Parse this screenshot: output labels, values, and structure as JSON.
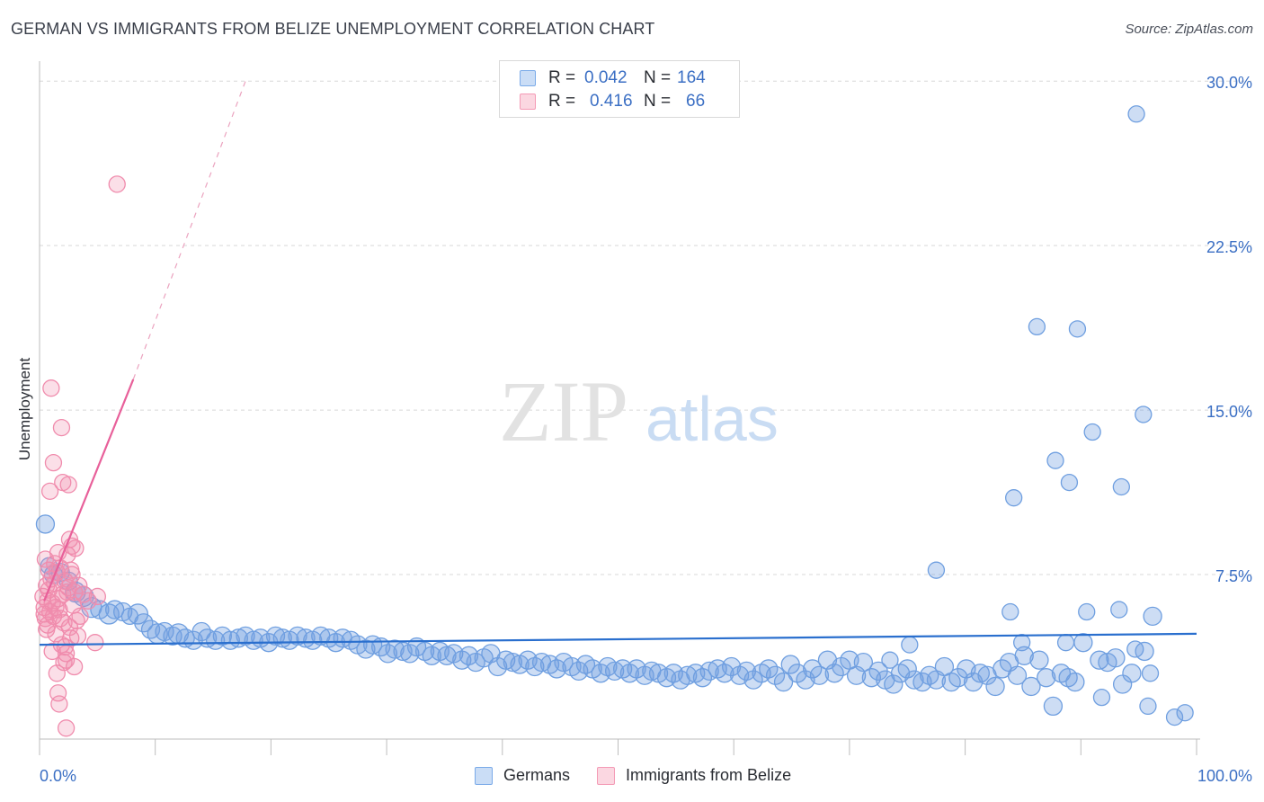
{
  "title": "GERMAN VS IMMIGRANTS FROM BELIZE UNEMPLOYMENT CORRELATION CHART",
  "source": "Source: ZipAtlas.com",
  "watermark": {
    "zip": "ZIP",
    "atlas": "atlas"
  },
  "legend": {
    "rows": [
      {
        "r_label": "R =",
        "r_value": "0.042",
        "n_label": "N =",
        "n_value": "164",
        "color": "#7aaae8"
      },
      {
        "r_label": "R =",
        "r_value": "0.416",
        "n_label": "N =",
        "n_value": "66",
        "color": "#f49ab5"
      }
    ]
  },
  "bottom_legend": [
    {
      "label": "Germans",
      "color": "#7aaae8"
    },
    {
      "label": "Immigrants from Belize",
      "color": "#f49ab5"
    }
  ],
  "chart_data": {
    "type": "scatter",
    "title": "GERMAN VS IMMIGRANTS FROM BELIZE UNEMPLOYMENT CORRELATION CHART",
    "xlabel": "",
    "ylabel": "Unemployment",
    "xlim": [
      0,
      100
    ],
    "ylim": [
      0,
      30.5
    ],
    "x_tick_labels": [
      "0.0%",
      "100.0%"
    ],
    "y_ticks": [
      {
        "value": 30.0,
        "label": "30.0%"
      },
      {
        "value": 22.5,
        "label": "22.5%"
      },
      {
        "value": 15.0,
        "label": "15.0%"
      },
      {
        "value": 7.5,
        "label": "7.5%"
      }
    ],
    "grid": true,
    "series": [
      {
        "name": "Germans",
        "color": "#6f9fe0",
        "trend": {
          "x": [
            0,
            100
          ],
          "y": [
            4.3,
            4.8
          ]
        },
        "points": [
          [
            0.5,
            9.8,
            10
          ],
          [
            0.8,
            7.9,
            9
          ],
          [
            1.2,
            7.5,
            10
          ],
          [
            1.8,
            7.6,
            10
          ],
          [
            2.5,
            7.2,
            10
          ],
          [
            3.1,
            6.7,
            11
          ],
          [
            3.8,
            6.5,
            11
          ],
          [
            4.5,
            6.0,
            11
          ],
          [
            5.2,
            5.9,
            10
          ],
          [
            6.0,
            5.7,
            11
          ],
          [
            6.5,
            5.9,
            10
          ],
          [
            7.2,
            5.8,
            10
          ],
          [
            7.8,
            5.6,
            9
          ],
          [
            8.5,
            5.7,
            11
          ],
          [
            9.0,
            5.3,
            10
          ],
          [
            9.6,
            5.0,
            10
          ],
          [
            10.2,
            4.8,
            11
          ],
          [
            10.8,
            4.9,
            10
          ],
          [
            11.5,
            4.7,
            10
          ],
          [
            12.0,
            4.8,
            11
          ],
          [
            12.6,
            4.6,
            10
          ],
          [
            13.3,
            4.5,
            10
          ],
          [
            14.0,
            4.9,
            10
          ],
          [
            14.5,
            4.6,
            10
          ],
          [
            15.2,
            4.5,
            10
          ],
          [
            15.8,
            4.7,
            10
          ],
          [
            16.5,
            4.5,
            10
          ],
          [
            17.2,
            4.6,
            10
          ],
          [
            17.8,
            4.7,
            10
          ],
          [
            18.5,
            4.5,
            10
          ],
          [
            19.1,
            4.6,
            10
          ],
          [
            19.8,
            4.4,
            10
          ],
          [
            20.4,
            4.7,
            10
          ],
          [
            21.0,
            4.6,
            10
          ],
          [
            21.6,
            4.5,
            10
          ],
          [
            22.3,
            4.7,
            10
          ],
          [
            23.0,
            4.6,
            10
          ],
          [
            23.6,
            4.5,
            10
          ],
          [
            24.3,
            4.7,
            10
          ],
          [
            25.0,
            4.6,
            10
          ],
          [
            25.6,
            4.4,
            10
          ],
          [
            26.2,
            4.6,
            10
          ],
          [
            26.9,
            4.5,
            10
          ],
          [
            27.5,
            4.3,
            10
          ],
          [
            28.2,
            4.1,
            10
          ],
          [
            28.8,
            4.3,
            10
          ],
          [
            29.5,
            4.2,
            10
          ],
          [
            30.1,
            3.9,
            10
          ],
          [
            30.7,
            4.1,
            10
          ],
          [
            31.4,
            4.0,
            10
          ],
          [
            32.0,
            3.9,
            10
          ],
          [
            32.6,
            4.2,
            10
          ],
          [
            33.3,
            4.0,
            10
          ],
          [
            33.9,
            3.8,
            10
          ],
          [
            34.6,
            4.0,
            10
          ],
          [
            35.2,
            3.8,
            10
          ],
          [
            35.8,
            3.9,
            10
          ],
          [
            36.5,
            3.6,
            10
          ],
          [
            37.1,
            3.8,
            10
          ],
          [
            37.7,
            3.5,
            10
          ],
          [
            38.4,
            3.7,
            10
          ],
          [
            39.0,
            3.9,
            10
          ],
          [
            39.6,
            3.3,
            10
          ],
          [
            40.3,
            3.6,
            10
          ],
          [
            40.9,
            3.5,
            10
          ],
          [
            41.5,
            3.4,
            10
          ],
          [
            42.2,
            3.6,
            10
          ],
          [
            42.8,
            3.3,
            10
          ],
          [
            43.4,
            3.5,
            10
          ],
          [
            44.1,
            3.4,
            10
          ],
          [
            44.7,
            3.2,
            10
          ],
          [
            45.3,
            3.5,
            10
          ],
          [
            46.0,
            3.3,
            10
          ],
          [
            46.6,
            3.1,
            10
          ],
          [
            47.2,
            3.4,
            10
          ],
          [
            47.8,
            3.2,
            10
          ],
          [
            48.5,
            3.0,
            10
          ],
          [
            49.1,
            3.3,
            10
          ],
          [
            49.7,
            3.1,
            10
          ],
          [
            50.4,
            3.2,
            10
          ],
          [
            51.0,
            3.0,
            10
          ],
          [
            51.6,
            3.2,
            10
          ],
          [
            52.3,
            2.9,
            10
          ],
          [
            52.9,
            3.1,
            10
          ],
          [
            53.5,
            3.0,
            10
          ],
          [
            54.2,
            2.8,
            10
          ],
          [
            54.8,
            3.0,
            10
          ],
          [
            55.4,
            2.7,
            10
          ],
          [
            56.0,
            2.9,
            10
          ],
          [
            56.7,
            3.0,
            10
          ],
          [
            57.3,
            2.8,
            10
          ],
          [
            57.9,
            3.1,
            10
          ],
          [
            58.6,
            3.2,
            10
          ],
          [
            59.2,
            3.0,
            10
          ],
          [
            59.8,
            3.3,
            10
          ],
          [
            60.5,
            2.9,
            10
          ],
          [
            61.1,
            3.1,
            10
          ],
          [
            61.7,
            2.7,
            10
          ],
          [
            62.4,
            3.0,
            10
          ],
          [
            63.0,
            3.2,
            10
          ],
          [
            63.6,
            2.9,
            10
          ],
          [
            64.3,
            2.6,
            10
          ],
          [
            64.9,
            3.4,
            10
          ],
          [
            65.5,
            3.0,
            10
          ],
          [
            66.2,
            2.7,
            10
          ],
          [
            66.8,
            3.2,
            10
          ],
          [
            67.4,
            2.9,
            10
          ],
          [
            68.1,
            3.6,
            10
          ],
          [
            68.7,
            3.0,
            10
          ],
          [
            69.3,
            3.3,
            10
          ],
          [
            70.0,
            3.6,
            10
          ],
          [
            70.6,
            2.9,
            10
          ],
          [
            71.2,
            3.5,
            10
          ],
          [
            71.9,
            2.8,
            10
          ],
          [
            72.5,
            3.1,
            10
          ],
          [
            73.1,
            2.7,
            10
          ],
          [
            73.8,
            2.5,
            10
          ],
          [
            74.4,
            3.0,
            10
          ],
          [
            75.0,
            3.2,
            10
          ],
          [
            75.6,
            2.7,
            10
          ],
          [
            76.3,
            2.6,
            10
          ],
          [
            76.9,
            2.9,
            10
          ],
          [
            77.5,
            2.7,
            10
          ],
          [
            78.2,
            3.3,
            10
          ],
          [
            78.8,
            2.6,
            10
          ],
          [
            79.4,
            2.8,
            10
          ],
          [
            80.1,
            3.2,
            10
          ],
          [
            80.7,
            2.6,
            10
          ],
          [
            81.3,
            3.0,
            10
          ],
          [
            81.9,
            2.9,
            10
          ],
          [
            82.6,
            2.4,
            10
          ],
          [
            83.2,
            3.2,
            10
          ],
          [
            83.8,
            3.5,
            10
          ],
          [
            84.5,
            2.9,
            10
          ],
          [
            85.1,
            3.8,
            10
          ],
          [
            85.7,
            2.4,
            10
          ],
          [
            86.4,
            3.6,
            10
          ],
          [
            87.0,
            2.8,
            10
          ],
          [
            87.6,
            1.5,
            10
          ],
          [
            88.3,
            3.0,
            10
          ],
          [
            88.9,
            2.8,
            10
          ],
          [
            89.5,
            2.6,
            10
          ],
          [
            90.2,
            4.4,
            10
          ],
          [
            91.6,
            3.6,
            10
          ],
          [
            92.3,
            3.5,
            10
          ],
          [
            93.0,
            3.7,
            10
          ],
          [
            93.6,
            2.5,
            10
          ],
          [
            94.4,
            3.0,
            10
          ],
          [
            95.5,
            4.0,
            10
          ],
          [
            96.2,
            5.6,
            10
          ],
          [
            77.5,
            7.7,
            9
          ],
          [
            84.2,
            11.0,
            9
          ],
          [
            86.2,
            18.8,
            9
          ],
          [
            89.7,
            18.7,
            9
          ],
          [
            87.8,
            12.7,
            9
          ],
          [
            89.0,
            11.7,
            9
          ],
          [
            91.0,
            14.0,
            9
          ],
          [
            93.5,
            11.5,
            9
          ],
          [
            95.4,
            14.8,
            9
          ],
          [
            93.3,
            5.9,
            9
          ],
          [
            75.2,
            4.3,
            9
          ],
          [
            84.9,
            4.4,
            9
          ],
          [
            73.5,
            3.6,
            9
          ],
          [
            88.7,
            4.4,
            9
          ],
          [
            94.7,
            4.1,
            9
          ],
          [
            96.0,
            3.0,
            9
          ],
          [
            98.1,
            1.0,
            9
          ],
          [
            99.0,
            1.2,
            9
          ],
          [
            91.8,
            1.9,
            9
          ],
          [
            95.8,
            1.5,
            9
          ],
          [
            83.9,
            5.8,
            9
          ],
          [
            90.5,
            5.8,
            9
          ],
          [
            94.8,
            28.5,
            9
          ]
        ]
      },
      {
        "name": "Immigrants from Belize",
        "color": "#f08cad",
        "trend": {
          "x": [
            0.4,
            8.1
          ],
          "y": [
            6.3,
            16.4
          ]
        },
        "trend_dashed": {
          "x": [
            8.1,
            17.8
          ],
          "y": [
            16.4,
            30.0
          ]
        },
        "points": [
          [
            0.3,
            6.5,
            9
          ],
          [
            0.4,
            6.0,
            9
          ],
          [
            0.5,
            5.5,
            9
          ],
          [
            0.6,
            7.0,
            9
          ],
          [
            0.7,
            5.2,
            9
          ],
          [
            0.8,
            6.8,
            9
          ],
          [
            0.9,
            5.8,
            9
          ],
          [
            1.0,
            7.3,
            9
          ],
          [
            1.1,
            6.2,
            9
          ],
          [
            1.2,
            5.6,
            9
          ],
          [
            1.3,
            8.0,
            9
          ],
          [
            1.4,
            4.8,
            9
          ],
          [
            1.5,
            7.6,
            9
          ],
          [
            1.6,
            6.4,
            9
          ],
          [
            1.7,
            5.9,
            9
          ],
          [
            1.8,
            7.8,
            9
          ],
          [
            1.9,
            4.3,
            9
          ],
          [
            2.0,
            6.6,
            9
          ],
          [
            2.1,
            5.3,
            9
          ],
          [
            2.2,
            7.2,
            9
          ],
          [
            2.3,
            3.6,
            9
          ],
          [
            2.4,
            8.4,
            9
          ],
          [
            2.5,
            6.9,
            9
          ],
          [
            2.6,
            5.1,
            9
          ],
          [
            2.7,
            4.6,
            9
          ],
          [
            2.8,
            7.5,
            9
          ],
          [
            2.9,
            6.1,
            9
          ],
          [
            3.0,
            3.3,
            9
          ],
          [
            3.1,
            8.7,
            9
          ],
          [
            3.2,
            5.4,
            9
          ],
          [
            0.5,
            8.2,
            9
          ],
          [
            0.9,
            11.3,
            9
          ],
          [
            1.0,
            16.0,
            9
          ],
          [
            1.2,
            12.6,
            9
          ],
          [
            1.5,
            3.0,
            9
          ],
          [
            1.6,
            2.1,
            9
          ],
          [
            1.7,
            1.6,
            9
          ],
          [
            1.9,
            14.2,
            9
          ],
          [
            2.0,
            11.7,
            9
          ],
          [
            2.3,
            3.9,
            9
          ],
          [
            2.5,
            11.6,
            9
          ],
          [
            2.6,
            9.1,
            9
          ],
          [
            2.8,
            8.8,
            9
          ],
          [
            3.3,
            4.7,
            9
          ],
          [
            3.5,
            5.6,
            9
          ],
          [
            3.8,
            6.6,
            9
          ],
          [
            4.2,
            6.3,
            9
          ],
          [
            5.0,
            6.5,
            9
          ],
          [
            4.8,
            4.4,
            9
          ],
          [
            6.7,
            25.3,
            9
          ],
          [
            2.3,
            0.5,
            9
          ],
          [
            0.6,
            5.0,
            9
          ],
          [
            0.7,
            6.3,
            9
          ],
          [
            1.1,
            4.0,
            9
          ],
          [
            1.3,
            7.1,
            9
          ],
          [
            1.4,
            6.0,
            9
          ],
          [
            1.8,
            5.5,
            9
          ],
          [
            2.1,
            3.5,
            9
          ],
          [
            2.2,
            4.2,
            9
          ],
          [
            2.4,
            6.7,
            9
          ],
          [
            0.8,
            7.7,
            9
          ],
          [
            1.6,
            8.5,
            9
          ],
          [
            2.7,
            7.7,
            9
          ],
          [
            3.0,
            6.7,
            9
          ],
          [
            3.4,
            7.0,
            9
          ],
          [
            0.4,
            5.7,
            9
          ]
        ]
      }
    ]
  }
}
